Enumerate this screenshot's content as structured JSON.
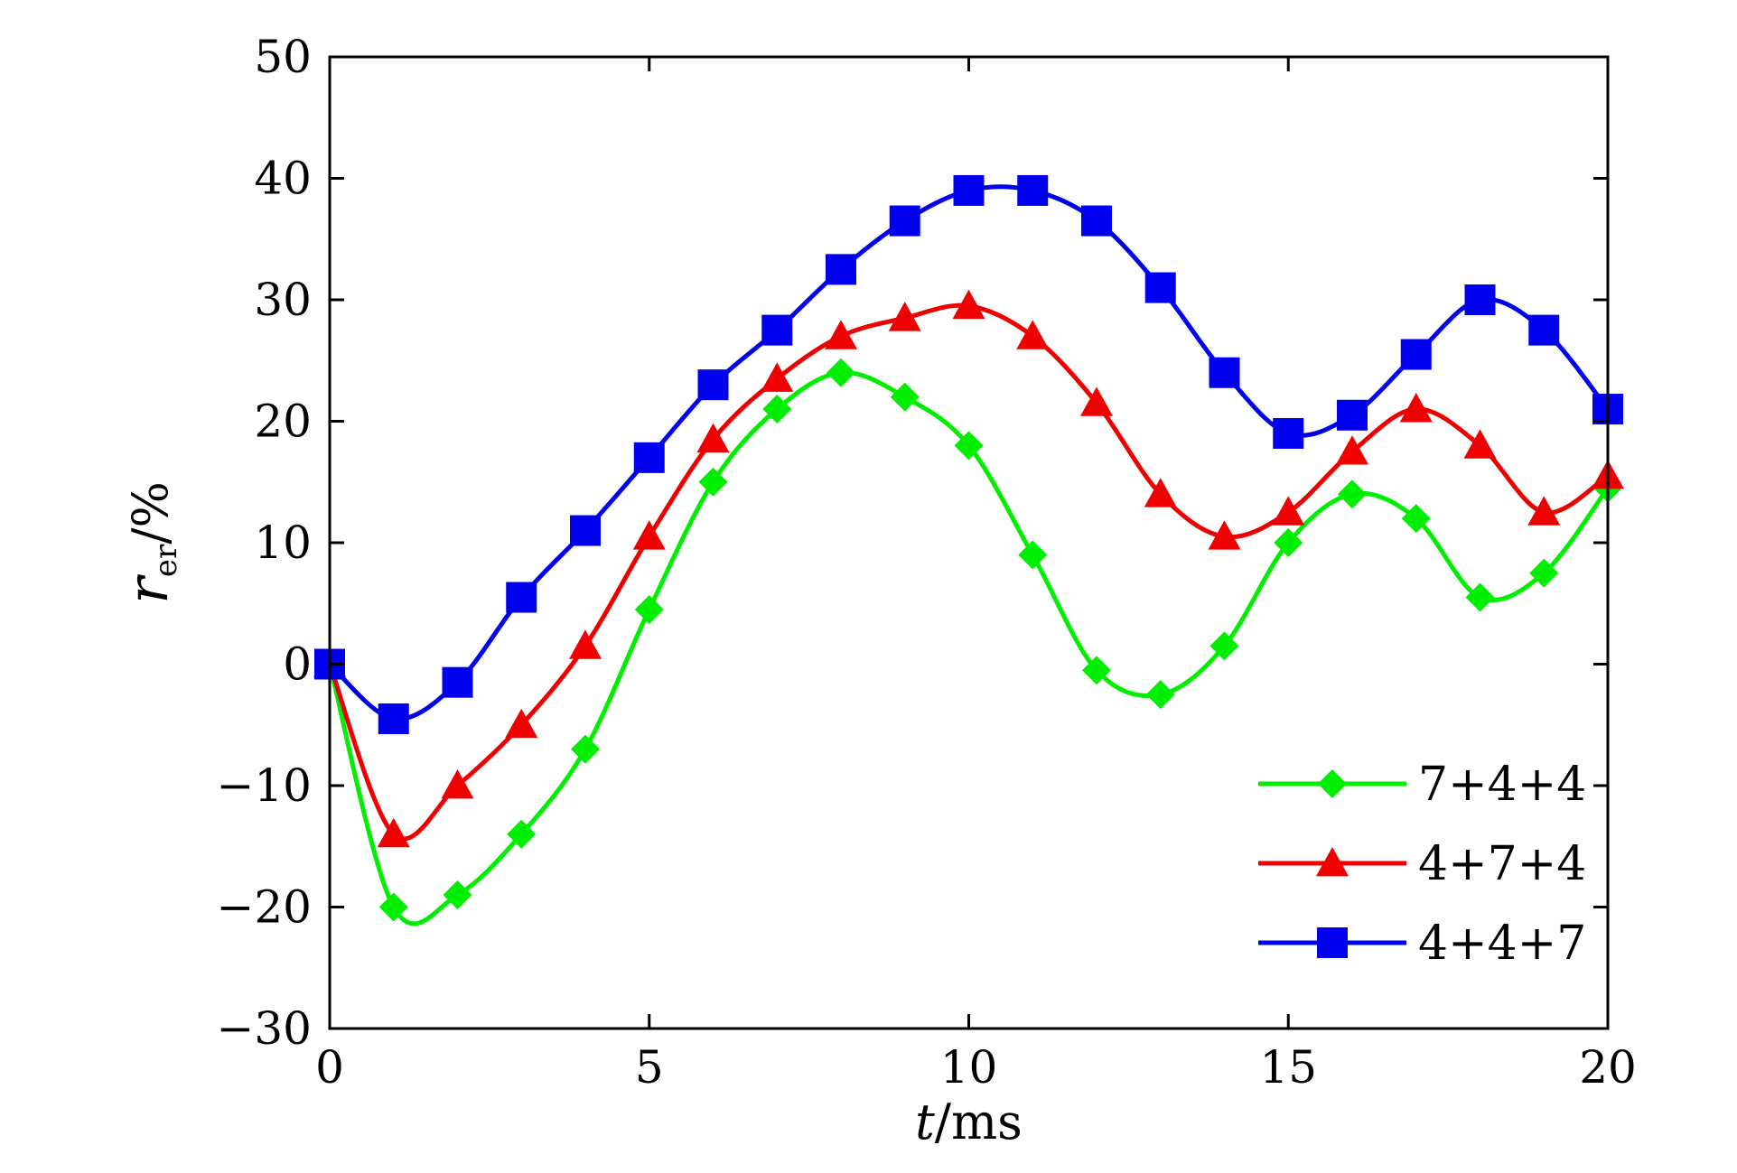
{
  "chart_data": {
    "type": "line",
    "title": "",
    "xlabel": {
      "var": "t",
      "unit": "/ms"
    },
    "ylabel": {
      "var": "r",
      "sub": "er",
      "unit": "/%"
    },
    "xlim": [
      0,
      20
    ],
    "ylim": [
      -30,
      50
    ],
    "xticks": [
      0,
      5,
      10,
      15,
      20
    ],
    "yticks": [
      -30,
      -20,
      -10,
      0,
      10,
      20,
      30,
      40,
      50
    ],
    "xtick_labels": [
      "0",
      "5",
      "10",
      "15",
      "20"
    ],
    "ytick_labels": [
      "−30",
      "−20",
      "−10",
      "0",
      "10",
      "20",
      "30",
      "40",
      "50"
    ],
    "grid": false,
    "legend_position": "bottom-right",
    "x": [
      0,
      1,
      2,
      3,
      4,
      5,
      6,
      7,
      8,
      9,
      10,
      11,
      12,
      13,
      14,
      15,
      16,
      17,
      18,
      19,
      20
    ],
    "series": [
      {
        "name": "7+4+4",
        "color": "#00ee00",
        "marker": "diamond",
        "values": [
          0,
          -20,
          -19,
          -14,
          -7,
          4.5,
          15,
          21,
          24,
          22,
          18,
          9,
          -0.5,
          -2.5,
          1.5,
          10,
          14,
          12,
          5.5,
          7.5,
          14.5
        ]
      },
      {
        "name": "4+7+4",
        "color": "#ee0000",
        "marker": "triangle",
        "values": [
          0,
          -14,
          -10,
          -5,
          1.5,
          10.5,
          18.5,
          23.5,
          27,
          28.5,
          29.5,
          27,
          21.5,
          14,
          10.5,
          12.5,
          17.5,
          21,
          18,
          12.5,
          15.5
        ]
      },
      {
        "name": "4+4+7",
        "color": "#0000ee",
        "marker": "square",
        "values": [
          0,
          -4.5,
          -1.5,
          5.5,
          11,
          17,
          23,
          27.5,
          32.5,
          36.5,
          39,
          39,
          36.5,
          31,
          24,
          19,
          20.5,
          25.5,
          30,
          27.5,
          21
        ]
      }
    ]
  }
}
